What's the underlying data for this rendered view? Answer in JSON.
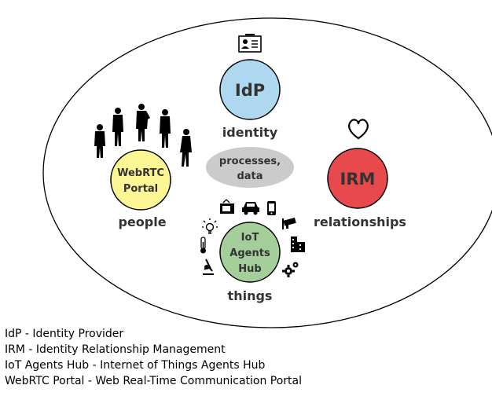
{
  "nodes": {
    "idp": {
      "label": "IdP",
      "caption": "identity",
      "color": "#add8ef"
    },
    "webrtc": {
      "label_line1": "WebRTC",
      "label_line2": "Portal",
      "caption": "people",
      "color": "#fbf594"
    },
    "irm": {
      "label": "IRM",
      "caption": "relationships",
      "color": "#e8494d"
    },
    "iot": {
      "label_line1": "IoT",
      "label_line2": "Agents",
      "label_line3": "Hub",
      "caption": "things",
      "color": "#a4cf9a"
    },
    "center": {
      "label_line1": "processes,",
      "label_line2": "data",
      "color": "#cbcbcb"
    }
  },
  "icons": {
    "idp": "id-card-icon",
    "irm": "heart-icon",
    "webrtc": "people-silhouettes-icon",
    "iot": [
      "light-bulb-icon",
      "tv-icon",
      "car-icon",
      "mobile-phone-icon",
      "security-camera-icon",
      "thermometer-icon",
      "building-icon",
      "microscope-icon",
      "gears-icon"
    ]
  },
  "legend": [
    "IdP - Identity Provider",
    "IRM - Identity Relationship Management",
    "IoT Agents Hub - Internet of Things Agents Hub",
    "WebRTC Portal - Web Real-Time Communication Portal"
  ]
}
